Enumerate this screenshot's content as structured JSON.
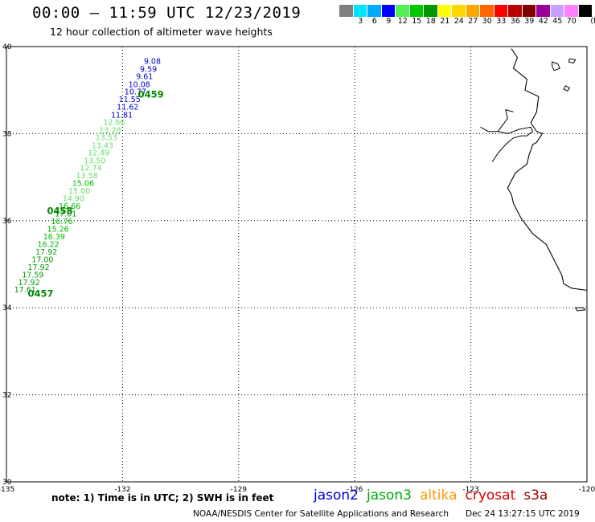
{
  "title": "00:00 — 11:59 UTC 12/23/2019",
  "subtitle": "12 hour collection of altimeter wave heights",
  "legend": {
    "unit": "(ft)",
    "colors": [
      "#7f7f7f",
      "#00e5ff",
      "#00aaff",
      "#0000ff",
      "#55ee55",
      "#00c800",
      "#009600",
      "#ffff00",
      "#ffd700",
      "#ffa500",
      "#ff6600",
      "#ff0000",
      "#b80000",
      "#800000",
      "#990099",
      "#c8a0ff",
      "#ff80ff",
      "#000000"
    ],
    "ticks": [
      "3",
      "6",
      "9",
      "12",
      "15",
      "18",
      "21",
      "24",
      "27",
      "30",
      "33",
      "36",
      "39",
      "42",
      "45",
      "70"
    ]
  },
  "map": {
    "lon_range": [
      -135,
      -120
    ],
    "lat_range": [
      30,
      40
    ],
    "lon_ticks": [
      {
        "value": -135,
        "label": "-135"
      },
      {
        "value": -132,
        "label": "-132"
      },
      {
        "value": -129,
        "label": "-129"
      },
      {
        "value": -126,
        "label": "-126"
      },
      {
        "value": -123,
        "label": "-123"
      },
      {
        "value": -120,
        "label": "-120"
      }
    ],
    "lat_ticks": [
      {
        "value": 30,
        "label": "30"
      },
      {
        "value": 32,
        "label": "32"
      },
      {
        "value": 34,
        "label": "34"
      },
      {
        "value": 36,
        "label": "36"
      },
      {
        "value": 38,
        "label": "38"
      },
      {
        "value": 40,
        "label": "40"
      }
    ],
    "coastline": [
      [
        -121.95,
        39.95
      ],
      [
        -121.8,
        39.75
      ],
      [
        -121.9,
        39.5
      ],
      [
        -121.55,
        39.25
      ],
      [
        -121.6,
        39.0
      ],
      [
        -121.25,
        38.85
      ],
      [
        -121.3,
        38.5
      ],
      [
        -121.45,
        38.25
      ],
      [
        -121.3,
        38.05
      ],
      [
        -121.15,
        38.0
      ],
      [
        -121.3,
        37.8
      ],
      [
        -121.4,
        37.75
      ],
      [
        -121.5,
        37.5
      ],
      [
        -121.55,
        37.3
      ],
      [
        -121.85,
        37.1
      ],
      [
        -122.05,
        36.75
      ],
      [
        -121.95,
        36.6
      ],
      [
        -121.9,
        36.4
      ],
      [
        -121.7,
        36.05
      ],
      [
        -121.4,
        35.7
      ],
      [
        -121.05,
        35.45
      ],
      [
        -120.85,
        35.1
      ],
      [
        -120.65,
        34.75
      ],
      [
        -120.6,
        34.55
      ],
      [
        -120.4,
        34.45
      ],
      [
        -120.0,
        34.4
      ]
    ],
    "bay": [
      [
        -122.75,
        38.15
      ],
      [
        -122.55,
        38.05
      ],
      [
        -122.3,
        38.05
      ],
      [
        -122.05,
        38.0
      ],
      [
        -121.75,
        38.1
      ],
      [
        -121.45,
        38.15
      ],
      [
        -121.4,
        38.05
      ],
      [
        -121.55,
        37.95
      ],
      [
        -121.7,
        37.95
      ],
      [
        -121.9,
        37.9
      ],
      [
        -122.1,
        37.75
      ],
      [
        -122.3,
        37.55
      ],
      [
        -122.45,
        37.35
      ]
    ],
    "bay_spur": [
      [
        -122.3,
        38.05
      ],
      [
        -122.05,
        38.35
      ],
      [
        -122.1,
        38.55
      ],
      [
        -121.9,
        38.5
      ]
    ],
    "islands": [
      [
        [
          -120.9,
          39.65
        ],
        [
          -120.75,
          39.6
        ],
        [
          -120.7,
          39.5
        ],
        [
          -120.85,
          39.45
        ],
        [
          -120.9,
          39.55
        ]
      ],
      [
        [
          -120.45,
          39.72
        ],
        [
          -120.3,
          39.7
        ],
        [
          -120.35,
          39.62
        ],
        [
          -120.47,
          39.65
        ]
      ],
      [
        [
          -120.55,
          39.1
        ],
        [
          -120.45,
          39.05
        ],
        [
          -120.5,
          38.98
        ],
        [
          -120.6,
          39.02
        ]
      ],
      [
        [
          -120.3,
          34.0
        ],
        [
          -120.1,
          34.0
        ],
        [
          -120.05,
          33.95
        ],
        [
          -120.25,
          33.93
        ]
      ]
    ],
    "tracks": [
      {
        "id": "0459",
        "color": "#008800",
        "label": {
          "lon": -131.6,
          "lat": 38.83
        }
      },
      {
        "id": "0458",
        "color": "#008800",
        "label": {
          "lon": -133.95,
          "lat": 36.15
        }
      },
      {
        "id": "0457",
        "color": "#008800",
        "label": {
          "lon": -134.45,
          "lat": 34.25
        }
      }
    ],
    "observations": [
      {
        "lon": -131.45,
        "lat": 39.6,
        "value": "9.08",
        "color": "#0000cc"
      },
      {
        "lon": -131.55,
        "lat": 39.42,
        "value": "9.59",
        "color": "#0000cc"
      },
      {
        "lon": -131.65,
        "lat": 39.25,
        "value": "9.61",
        "color": "#0000cc"
      },
      {
        "lon": -131.85,
        "lat": 39.07,
        "value": "10.08",
        "color": "#0000cc"
      },
      {
        "lon": -131.95,
        "lat": 38.9,
        "value": "10.77",
        "color": "#0000cc"
      },
      {
        "lon": -132.1,
        "lat": 38.73,
        "value": "11.55",
        "color": "#0000cc"
      },
      {
        "lon": -132.15,
        "lat": 38.55,
        "value": "11.62",
        "color": "#0000cc"
      },
      {
        "lon": -132.3,
        "lat": 38.37,
        "value": "11.81",
        "color": "#0000cc"
      },
      {
        "lon": -132.5,
        "lat": 38.2,
        "value": "12.66",
        "color": "#66e066"
      },
      {
        "lon": -132.6,
        "lat": 38.02,
        "value": "13.28",
        "color": "#66e066"
      },
      {
        "lon": -132.7,
        "lat": 37.85,
        "value": "13.53",
        "color": "#66e066"
      },
      {
        "lon": -132.8,
        "lat": 37.67,
        "value": "13.43",
        "color": "#66e066"
      },
      {
        "lon": -132.9,
        "lat": 37.5,
        "value": "12.49",
        "color": "#66e066"
      },
      {
        "lon": -133.0,
        "lat": 37.32,
        "value": "13.50",
        "color": "#66e066"
      },
      {
        "lon": -133.1,
        "lat": 37.15,
        "value": "12.74",
        "color": "#66e066"
      },
      {
        "lon": -133.2,
        "lat": 36.97,
        "value": "13.58",
        "color": "#66e066"
      },
      {
        "lon": -133.3,
        "lat": 36.8,
        "value": "15.06",
        "color": "#00bb00"
      },
      {
        "lon": -133.4,
        "lat": 36.62,
        "value": "15.00",
        "color": "#66e066"
      },
      {
        "lon": -133.55,
        "lat": 36.45,
        "value": "14.90",
        "color": "#66e066"
      },
      {
        "lon": -133.65,
        "lat": 36.27,
        "value": "16.66",
        "color": "#00bb00"
      },
      {
        "lon": -133.75,
        "lat": 36.1,
        "value": "17.01",
        "color": "#009900"
      },
      {
        "lon": -133.85,
        "lat": 35.92,
        "value": "16.76",
        "color": "#00bb00"
      },
      {
        "lon": -133.95,
        "lat": 35.75,
        "value": "15.26",
        "color": "#00bb00"
      },
      {
        "lon": -134.05,
        "lat": 35.57,
        "value": "16.39",
        "color": "#00bb00"
      },
      {
        "lon": -134.2,
        "lat": 35.4,
        "value": "16.22",
        "color": "#00bb00"
      },
      {
        "lon": -134.25,
        "lat": 35.22,
        "value": "17.92",
        "color": "#009900"
      },
      {
        "lon": -134.35,
        "lat": 35.05,
        "value": "17.00",
        "color": "#009900"
      },
      {
        "lon": -134.45,
        "lat": 34.87,
        "value": "17.92",
        "color": "#009900"
      },
      {
        "lon": -134.6,
        "lat": 34.7,
        "value": "17.59",
        "color": "#009900"
      },
      {
        "lon": -134.7,
        "lat": 34.52,
        "value": "17.92",
        "color": "#009900"
      },
      {
        "lon": -134.8,
        "lat": 34.35,
        "value": "17.61",
        "color": "#009900"
      }
    ]
  },
  "note": "note: 1) Time is in UTC; 2) SWH is in feet",
  "satellites": [
    {
      "name": "jason2",
      "color": "#0000dd"
    },
    {
      "name": "jason3",
      "color": "#00aa00"
    },
    {
      "name": "altika",
      "color": "#ff9900"
    },
    {
      "name": "cryosat",
      "color": "#dd0000"
    },
    {
      "name": "s3a",
      "color": "#990000"
    }
  ],
  "credit": "NOAA/NESDIS Center for Satellite Applications and Research",
  "timestamp": "Dec 24 13:27:15 UTC 2019"
}
